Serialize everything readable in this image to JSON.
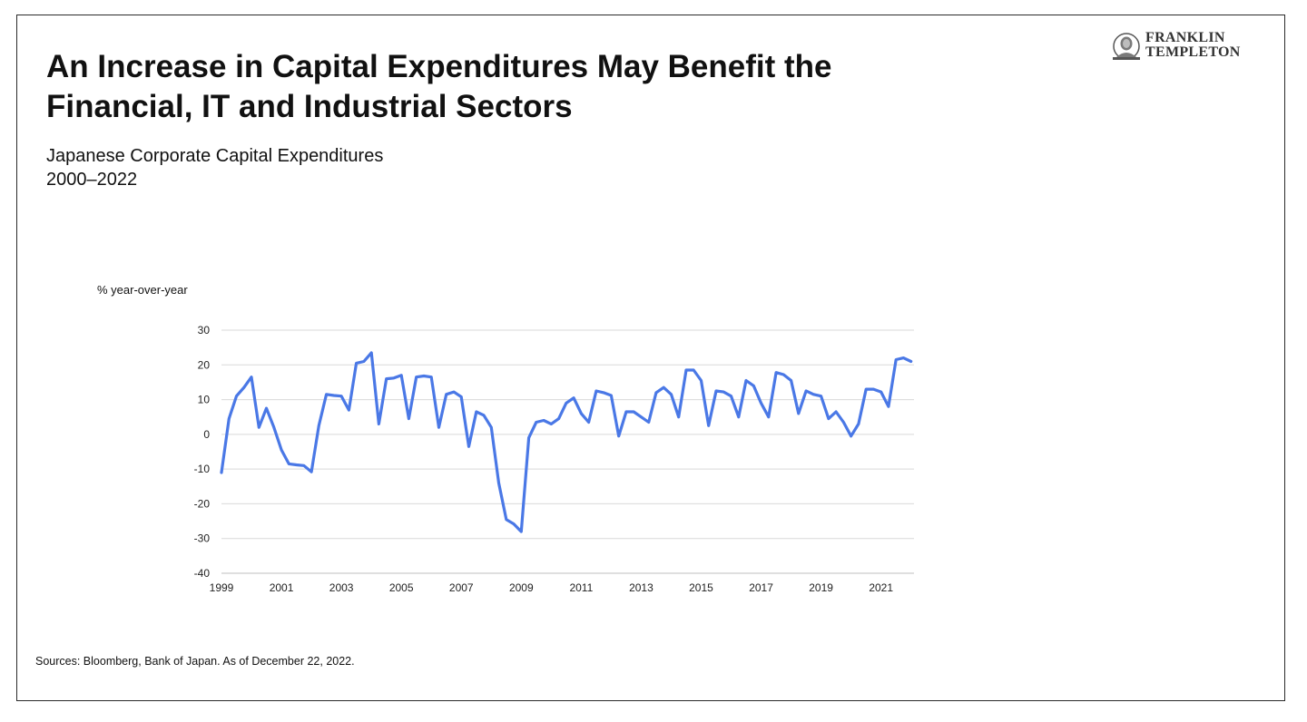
{
  "slide": {
    "title_line1": "An Increase in Capital Expenditures May Benefit the",
    "title_line2": "Financial, IT and Industrial Sectors",
    "subtitle_line1": "Japanese Corporate Capital Expenditures",
    "subtitle_line2": "2000–2022",
    "source": "Sources: Bloomberg, Bank of Japan. As of December 22, 2022."
  },
  "logo": {
    "line1": "FRANKLIN",
    "line2": "TEMPLETON",
    "icon": "franklin-portrait-icon"
  },
  "colors": {
    "line": "#4a78e6",
    "grid": "#d9d9d9",
    "text": "#111111"
  },
  "chart_data": {
    "type": "line",
    "ylabel": "% year-over-year",
    "xlabel": "",
    "ylim": [
      -40,
      30
    ],
    "yticks": [
      30,
      20,
      10,
      0,
      -10,
      -20,
      -30,
      -40
    ],
    "xlim": [
      1999,
      2022.1
    ],
    "xticks": [
      1999,
      2001,
      2003,
      2005,
      2007,
      2009,
      2011,
      2013,
      2015,
      2017,
      2019,
      2021
    ],
    "grid": true,
    "series": [
      {
        "name": "Japanese Corporate Capital Expenditures",
        "x": [
          1999.0,
          1999.25,
          1999.5,
          1999.75,
          2000.0,
          2000.25,
          2000.5,
          2000.75,
          2001.0,
          2001.25,
          2001.5,
          2001.75,
          2002.0,
          2002.25,
          2002.5,
          2002.75,
          2003.0,
          2003.25,
          2003.5,
          2003.75,
          2004.0,
          2004.25,
          2004.5,
          2004.75,
          2005.0,
          2005.25,
          2005.5,
          2005.75,
          2006.0,
          2006.25,
          2006.5,
          2006.75,
          2007.0,
          2007.25,
          2007.5,
          2007.75,
          2008.0,
          2008.25,
          2008.5,
          2008.75,
          2009.0,
          2009.25,
          2009.5,
          2009.75,
          2010.0,
          2010.25,
          2010.5,
          2010.75,
          2011.0,
          2011.25,
          2011.5,
          2011.75,
          2012.0,
          2012.25,
          2012.5,
          2012.75,
          2013.0,
          2013.25,
          2013.5,
          2013.75,
          2014.0,
          2014.25,
          2014.5,
          2014.75,
          2015.0,
          2015.25,
          2015.5,
          2015.75,
          2016.0,
          2016.25,
          2016.5,
          2016.75,
          2017.0,
          2017.25,
          2017.5,
          2017.75,
          2018.0,
          2018.25,
          2018.5,
          2018.75,
          2019.0,
          2019.25,
          2019.5,
          2019.75,
          2020.0,
          2020.25,
          2020.5,
          2020.75,
          2021.0,
          2021.25,
          2021.5,
          2021.75,
          2022.0
        ],
        "values": [
          -11.0,
          4.5,
          11.0,
          13.5,
          16.5,
          2.0,
          7.5,
          2.0,
          -4.5,
          -8.5,
          -8.8,
          -9.0,
          -10.8,
          2.5,
          11.5,
          11.2,
          11.0,
          7.0,
          20.5,
          21.0,
          23.5,
          3.0,
          16.0,
          16.2,
          17.0,
          4.5,
          16.5,
          16.8,
          16.5,
          2.0,
          11.5,
          12.2,
          10.8,
          -3.5,
          6.5,
          5.5,
          2.0,
          -14.0,
          -24.5,
          -25.8,
          -28.0,
          -1.0,
          3.5,
          4.0,
          3.0,
          4.5,
          9.0,
          10.5,
          6.0,
          3.5,
          12.5,
          12.0,
          11.2,
          -0.5,
          6.5,
          6.5,
          5.0,
          3.5,
          12.0,
          13.5,
          11.5,
          5.0,
          18.5,
          18.5,
          15.5,
          2.5,
          12.5,
          12.2,
          11.0,
          5.0,
          15.5,
          14.0,
          9.0,
          5.0,
          17.8,
          17.2,
          15.5,
          6.0,
          12.5,
          11.5,
          11.0,
          4.5,
          6.5,
          3.5,
          -0.5,
          3.0,
          13.0,
          13.0,
          12.2,
          8.0,
          21.5,
          22.0,
          21.0
        ]
      }
    ]
  }
}
